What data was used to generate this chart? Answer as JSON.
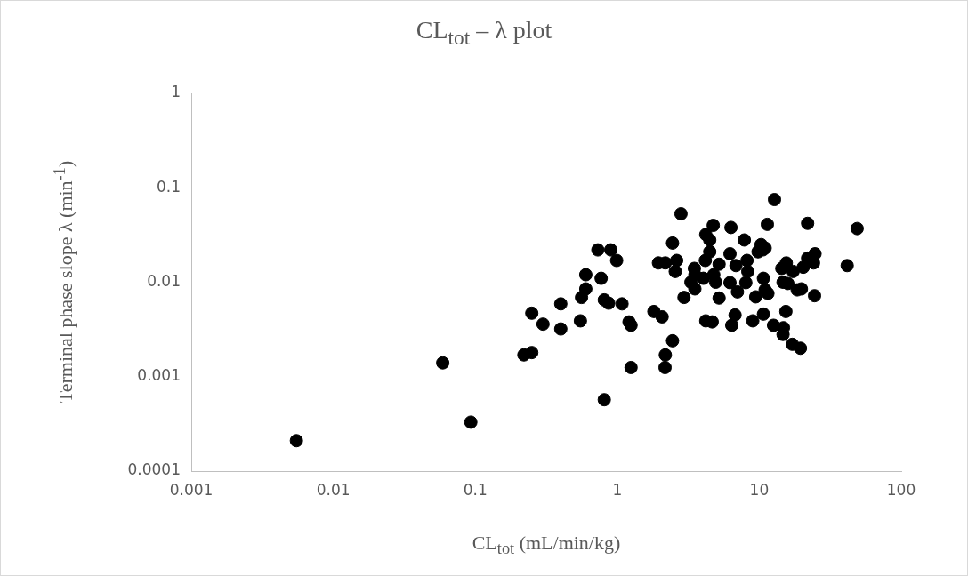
{
  "chart_data": {
    "type": "scatter",
    "title": "CL$_{tot}$ – λ plot",
    "xlabel": "CL$_{tot}$ (mL/min/kg)",
    "ylabel": "Terminal phase slope  λ (min$^{-1}$)",
    "log": "xy",
    "grid": false,
    "legend": false,
    "marker": "circle",
    "xlim": [
      0.001,
      100
    ],
    "xticks": [
      0.001,
      0.01,
      0.1,
      1,
      10,
      100
    ],
    "ylim": [
      0.0001,
      1
    ],
    "yticks": [
      0.0001,
      0.001,
      0.01,
      0.1,
      1
    ],
    "series": [
      {
        "color": "#000000",
        "x": [
          0.0055,
          0.059,
          0.093,
          0.22,
          0.25,
          0.25,
          0.3,
          0.4,
          0.4,
          0.55,
          0.56,
          0.6,
          0.6,
          0.73,
          0.77,
          0.81,
          0.87,
          0.9,
          0.99,
          0.81,
          1.08,
          1.21,
          1.25,
          1.25,
          1.81,
          1.95,
          2.07,
          2.18,
          2.18,
          2.17,
          2.45,
          2.45,
          2.62,
          2.56,
          2.81,
          2.95,
          3.3,
          3.49,
          3.52,
          3.52,
          4.04,
          4.17,
          4.2,
          4.2,
          4.48,
          4.48,
          4.66,
          4.74,
          4.78,
          4.93,
          5.21,
          5.21,
          6.22,
          6.22,
          6.32,
          6.4,
          6.75,
          6.85,
          7.02,
          7.85,
          8.04,
          8.2,
          8.3,
          9.0,
          9.44,
          9.8,
          10.3,
          10.6,
          10.7,
          10.7,
          11,
          11,
          11.4,
          11.5,
          12.8,
          12.6,
          14.4,
          14.7,
          14.8,
          14.7,
          15.4,
          15.5,
          15.9,
          17.1,
          17.3,
          18.5,
          19.5,
          19.8,
          20.4,
          21.9,
          21.9,
          24.1,
          24.7,
          24.5,
          41.6,
          48.9
        ],
        "values": [
          0.00021,
          0.0014,
          0.00033,
          0.0017,
          0.0018,
          0.0047,
          0.0036,
          0.0059,
          0.0032,
          0.0039,
          0.0069,
          0.0085,
          0.012,
          0.022,
          0.011,
          0.0065,
          0.006,
          0.022,
          0.017,
          0.00057,
          0.0059,
          0.0038,
          0.0035,
          0.00125,
          0.0049,
          0.016,
          0.0043,
          0.016,
          0.0017,
          0.00125,
          0.0024,
          0.026,
          0.017,
          0.013,
          0.053,
          0.0069,
          0.01,
          0.014,
          0.0085,
          0.012,
          0.011,
          0.017,
          0.0039,
          0.032,
          0.028,
          0.021,
          0.0038,
          0.04,
          0.012,
          0.01,
          0.0155,
          0.0068,
          0.0099,
          0.02,
          0.038,
          0.0035,
          0.0045,
          0.015,
          0.0079,
          0.028,
          0.0099,
          0.017,
          0.013,
          0.0039,
          0.007,
          0.021,
          0.025,
          0.022,
          0.011,
          0.0046,
          0.023,
          0.0083,
          0.041,
          0.0076,
          0.075,
          0.0035,
          0.014,
          0.01,
          0.0033,
          0.0028,
          0.0049,
          0.016,
          0.0097,
          0.0022,
          0.013,
          0.0083,
          0.002,
          0.0085,
          0.0144,
          0.042,
          0.018,
          0.016,
          0.02,
          0.0072,
          0.015,
          0.037
        ]
      }
    ]
  }
}
